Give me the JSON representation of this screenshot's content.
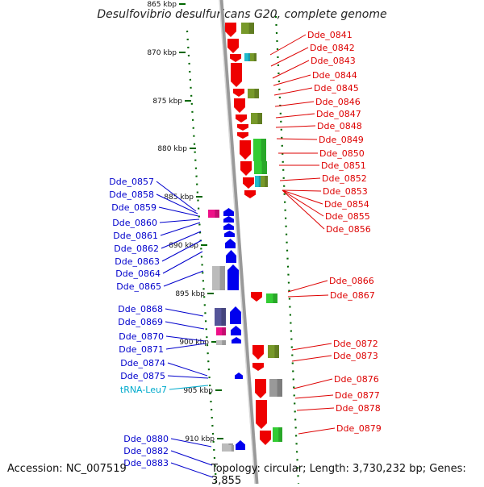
{
  "title": "Desulfovibrio desulfuricans G20, complete genome",
  "footer": {
    "accession": "Accession: NC_007519",
    "topology": "Topology: circular; Length: 3,730,232 bp; Genes: 3,855"
  },
  "colors": {
    "left_label": "#0000cc",
    "right_label": "#dd0000",
    "trna_label": "#00aacc",
    "backbone": "#888888",
    "tick": "#006600"
  },
  "scale_labels": [
    "865 kbp",
    "870 kbp",
    "875 kbp",
    "880 kbp",
    "885 kbp",
    "890 kbp",
    "895 kbp",
    "900 kbp",
    "905 kbp",
    "910 kbp"
  ],
  "left_genes": [
    "Dde_0857",
    "Dde_0858",
    "Dde_0859",
    "Dde_0860",
    "Dde_0861",
    "Dde_0862",
    "Dde_0863",
    "Dde_0864",
    "Dde_0865",
    "Dde_0868",
    "Dde_0869",
    "Dde_0870",
    "Dde_0871",
    "Dde_0874",
    "Dde_0875",
    "tRNA-Leu7",
    "Dde_0880",
    "Dde_0882",
    "Dde_0883"
  ],
  "right_genes": [
    "Dde_0841",
    "Dde_0842",
    "Dde_0843",
    "Dde_0844",
    "Dde_0845",
    "Dde_0846",
    "Dde_0847",
    "Dde_0848",
    "Dde_0849",
    "Dde_0850",
    "Dde_0851",
    "Dde_0852",
    "Dde_0853",
    "Dde_0854",
    "Dde_0855",
    "Dde_0856",
    "Dde_0866",
    "Dde_0867",
    "Dde_0872",
    "Dde_0873",
    "Dde_0876",
    "Dde_0877",
    "Dde_0878",
    "Dde_0879"
  ]
}
